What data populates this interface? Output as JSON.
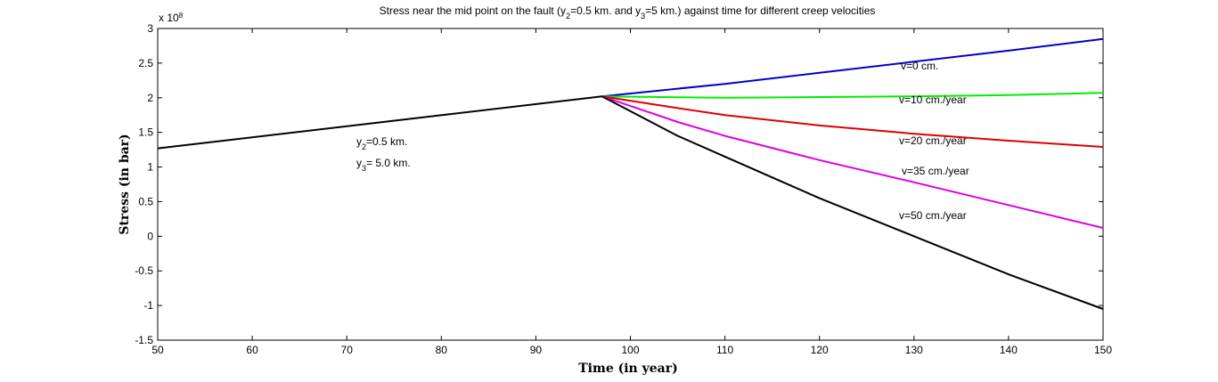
{
  "chart_data": {
    "type": "line",
    "title_parts": {
      "a": "Stress near the mid point on the fault (y",
      "a_sub": "2",
      "b": "=0.5 km. and y",
      "b_sub": "3",
      "c": "=5 km.) against time for different creep velocities"
    },
    "xlabel": "Time (in year)",
    "ylabel": "Stress (in bar)",
    "y_exponent": "x 10",
    "y_exponent_power": "8",
    "xlim": [
      50,
      150
    ],
    "ylim": [
      -1.5,
      3
    ],
    "x_ticks": [
      "50",
      "60",
      "70",
      "80",
      "90",
      "100",
      "110",
      "120",
      "130",
      "140",
      "150"
    ],
    "y_ticks": [
      "3",
      "2.5",
      "2",
      "1.5",
      "1",
      "0.5",
      "0",
      "-0.5",
      "-1",
      "-1.5"
    ],
    "grid": false,
    "colors": {
      "base": "#000000",
      "v0": "#0000cc",
      "v10": "#00ee00",
      "v20": "#dd0000",
      "v35": "#dd00dd",
      "v50": "#000000"
    },
    "series": [
      {
        "key": "base",
        "x": [
          50,
          97
        ],
        "y": [
          1.27,
          2.02
        ]
      },
      {
        "key": "v0",
        "x": [
          97,
          110,
          120,
          130,
          140,
          150
        ],
        "y": [
          2.02,
          2.2,
          2.36,
          2.52,
          2.68,
          2.85
        ]
      },
      {
        "key": "v10",
        "x": [
          97,
          110,
          120,
          130,
          140,
          150
        ],
        "y": [
          2.02,
          2.0,
          2.01,
          2.02,
          2.04,
          2.07
        ]
      },
      {
        "key": "v20",
        "x": [
          97,
          105,
          110,
          120,
          130,
          140,
          150
        ],
        "y": [
          2.02,
          1.85,
          1.75,
          1.6,
          1.48,
          1.38,
          1.29
        ]
      },
      {
        "key": "v35",
        "x": [
          97,
          105,
          110,
          120,
          130,
          140,
          150
        ],
        "y": [
          2.02,
          1.65,
          1.45,
          1.1,
          0.78,
          0.45,
          0.12
        ]
      },
      {
        "key": "v50",
        "x": [
          97,
          105,
          110,
          120,
          130,
          140,
          150
        ],
        "y": [
          2.02,
          1.45,
          1.15,
          0.55,
          0.0,
          -0.55,
          -1.05
        ]
      }
    ],
    "annotations": {
      "v0": "v=0 cm.",
      "v10": "v=10 cm./year",
      "v20": "v=20 cm./year",
      "v35": "v=35 cm./year",
      "v50": "v=50 cm./year",
      "y2_a": "y",
      "y2_sub": "2",
      "y2_b": "=0.5 km.",
      "y3_a": "y",
      "y3_sub": "3",
      "y3_b": "= 5.0 km."
    }
  }
}
